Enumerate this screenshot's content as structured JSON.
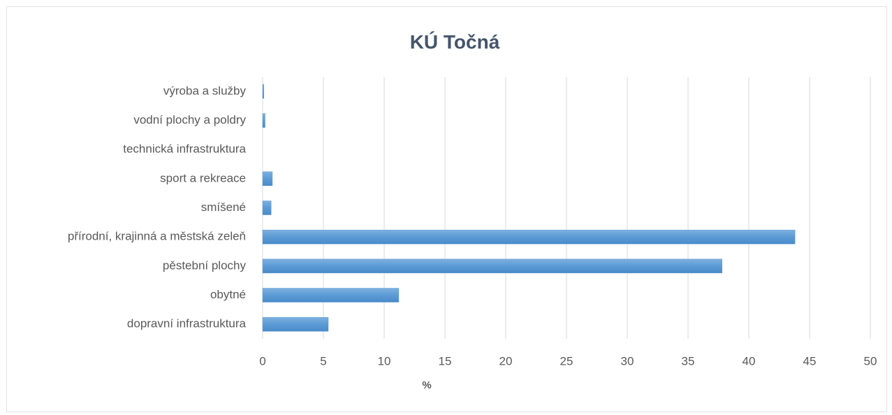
{
  "chart_data": {
    "type": "bar",
    "orientation": "horizontal",
    "title": "KÚ Točná",
    "x_label": "%",
    "categories": [
      "dopravní infrastruktura",
      "obytné",
      "pěstební plochy",
      "přírodní, krajinná a městská zeleň",
      "smíšené",
      "sport a rekreace",
      "technická infrastruktura",
      "vodní plochy a poldry",
      "výroba a služby"
    ],
    "values": [
      5.4,
      11.2,
      37.8,
      43.8,
      0.7,
      0.8,
      0,
      0.2,
      0.1
    ],
    "color": "#5b9bd5",
    "xlim": [
      0,
      50
    ],
    "xticks": [
      0,
      5,
      10,
      15,
      20,
      25,
      30,
      35,
      40,
      45,
      50
    ],
    "grid": true
  }
}
